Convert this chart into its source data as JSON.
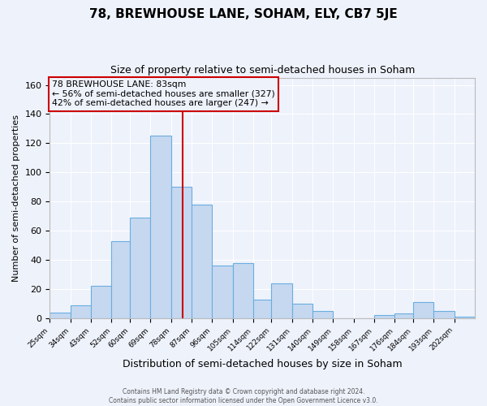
{
  "title": "78, BREWHOUSE LANE, SOHAM, ELY, CB7 5JE",
  "subtitle": "Size of property relative to semi-detached houses in Soham",
  "xlabel": "Distribution of semi-detached houses by size in Soham",
  "ylabel": "Number of semi-detached properties",
  "bin_labels": [
    "25sqm",
    "34sqm",
    "43sqm",
    "52sqm",
    "60sqm",
    "69sqm",
    "78sqm",
    "87sqm",
    "96sqm",
    "105sqm",
    "114sqm",
    "122sqm",
    "131sqm",
    "140sqm",
    "149sqm",
    "158sqm",
    "167sqm",
    "176sqm",
    "184sqm",
    "193sqm",
    "202sqm"
  ],
  "bar_heights": [
    4,
    9,
    22,
    53,
    69,
    125,
    90,
    78,
    36,
    38,
    13,
    24,
    10,
    5,
    0,
    0,
    2,
    3,
    11,
    5,
    1
  ],
  "bar_color": "#c5d8f0",
  "bar_edge_color": "#6aaee0",
  "property_line_x": 83,
  "bin_edges": [
    25,
    34,
    43,
    52,
    60,
    69,
    78,
    87,
    96,
    105,
    114,
    122,
    131,
    140,
    149,
    158,
    167,
    176,
    184,
    193,
    202,
    211
  ],
  "ylim": [
    0,
    165
  ],
  "yticks": [
    0,
    20,
    40,
    60,
    80,
    100,
    120,
    140,
    160
  ],
  "annotation_title": "78 BREWHOUSE LANE: 83sqm",
  "annotation_line1": "← 56% of semi-detached houses are smaller (327)",
  "annotation_line2": "42% of semi-detached houses are larger (247) →",
  "footer_line1": "Contains HM Land Registry data © Crown copyright and database right 2024.",
  "footer_line2": "Contains public sector information licensed under the Open Government Licence v3.0.",
  "background_color": "#eef2fb",
  "grid_color": "#ffffff",
  "box_color": "#cc0000"
}
